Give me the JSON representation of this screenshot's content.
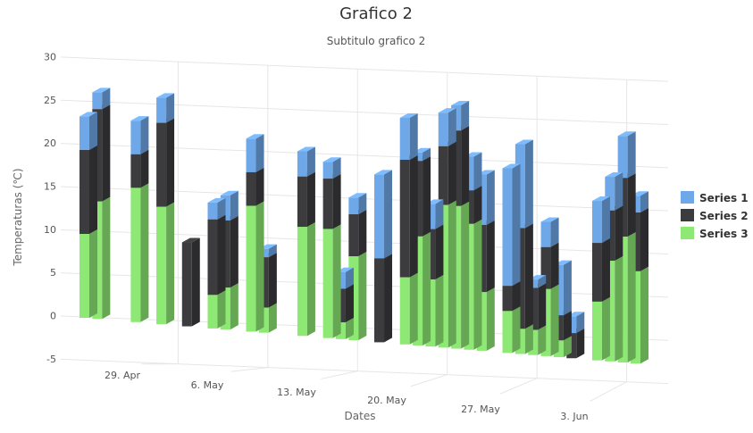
{
  "chart_data": {
    "type": "bar",
    "title": "Grafico 2",
    "subtitle": "Subtitulo grafico 2",
    "xlabel": "Dates",
    "ylabel": "Temperaturas (℃)",
    "ylim": [
      -5,
      30
    ],
    "yticks": [
      "-5",
      "0",
      "5",
      "10",
      "15",
      "20",
      "25",
      "30"
    ],
    "xtick_labels": [
      "29. Apr",
      "6. May",
      "13. May",
      "20. May",
      "27. May",
      "3. Jun"
    ],
    "stacked": true,
    "grid": true,
    "legend_position": "right",
    "dates": [
      "2019-04-25",
      "2019-04-26",
      "2019-04-29",
      "2019-05-01",
      "2019-05-03",
      "2019-05-05",
      "2019-05-06",
      "2019-05-08",
      "2019-05-09",
      "2019-05-12",
      "2019-05-14",
      "2019-05-15",
      "2019-05-16",
      "2019-05-18",
      "2019-05-20",
      "2019-05-21",
      "2019-05-22",
      "2019-05-23",
      "2019-05-24",
      "2019-05-25",
      "2019-05-26",
      "2019-05-28",
      "2019-05-29",
      "2019-05-30",
      "2019-05-31",
      "2019-06-01",
      "2019-06-02",
      "2019-06-04",
      "2019-06-05",
      "2019-06-06",
      "2019-06-07"
    ],
    "series": [
      {
        "name": "Series 1",
        "color": "#6fa8e8",
        "values": [
          4,
          2,
          4,
          3,
          0,
          2,
          3,
          4,
          1,
          3,
          2,
          2,
          2,
          10,
          5,
          1,
          3,
          4,
          3,
          4,
          6,
          14,
          10,
          1,
          3,
          6,
          2,
          5,
          4,
          5,
          2
        ]
      },
      {
        "name": "Series 2",
        "color": "#3c3c3e",
        "values": [
          10,
          11,
          4,
          10,
          10,
          9,
          8,
          4,
          6,
          6,
          6,
          4,
          5,
          10,
          14,
          9,
          6,
          7,
          9,
          4,
          8,
          3,
          12,
          5,
          5,
          3,
          3,
          7,
          6,
          7,
          7
        ]
      },
      {
        "name": "Series 3",
        "color": "#8ee874",
        "values": [
          10,
          14,
          16,
          14,
          0,
          4,
          5,
          15,
          3,
          13,
          13,
          2,
          10,
          0,
          8,
          13,
          8,
          17,
          17,
          15,
          7,
          5,
          3,
          3,
          8,
          2,
          0,
          7,
          12,
          15,
          11
        ]
      }
    ]
  }
}
